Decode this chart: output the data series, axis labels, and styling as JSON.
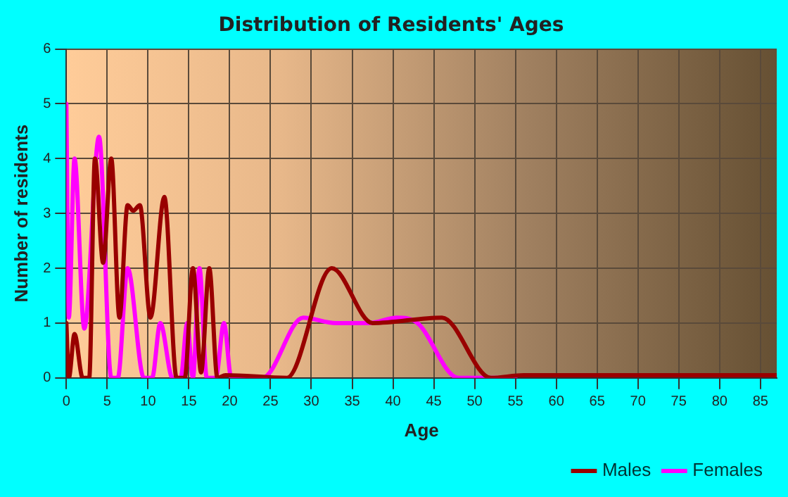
{
  "chart_data": {
    "type": "line",
    "title": "Distribution of Residents' Ages",
    "xlabel": "Age",
    "ylabel": "Number of residents",
    "xlim": [
      0,
      87
    ],
    "xticks": [
      0,
      5,
      10,
      15,
      20,
      25,
      30,
      35,
      40,
      45,
      50,
      55,
      60,
      65,
      70,
      75,
      80,
      85
    ],
    "ylim": [
      0,
      6
    ],
    "yticks": [
      0,
      1,
      2,
      3,
      4,
      5,
      6
    ],
    "grid": true,
    "legend": "bottom right",
    "marker": "none",
    "line_style": "solid",
    "series": [
      {
        "name": "Males",
        "color": "#990000",
        "x": [
          0,
          0.3,
          1,
          2,
          2.8,
          3.5,
          4.5,
          5.5,
          6.5,
          7.5,
          8.2,
          9,
          10.3,
          12,
          13.5,
          14.5,
          15.5,
          16.5,
          17.5,
          18.5,
          19.5,
          27,
          32.5,
          37.5,
          46,
          52,
          56,
          87
        ],
        "values": [
          1,
          0,
          0.8,
          0,
          0,
          4,
          2.1,
          4,
          1.1,
          3.15,
          3.05,
          3.15,
          1.1,
          3.3,
          0,
          0,
          2,
          0.1,
          2,
          0,
          0.05,
          0,
          2,
          1,
          1.1,
          0,
          0.05,
          0.05
        ]
      },
      {
        "name": "Females",
        "color": "#ff00ff",
        "x": [
          0,
          0.3,
          1,
          2.2,
          4,
          5.5,
          6.3,
          7.5,
          9.5,
          10.5,
          11.5,
          13,
          14,
          14.8,
          15.5,
          16.3,
          17.2,
          18.3,
          19.3,
          20.2,
          24,
          29,
          33,
          37,
          40.5,
          43,
          48,
          55
        ],
        "values": [
          5,
          1.1,
          4,
          0.9,
          4.4,
          0,
          0,
          2,
          0,
          0,
          1,
          0,
          0,
          1,
          0,
          2,
          0,
          0,
          1,
          0,
          0,
          1.1,
          1,
          1,
          1.1,
          1,
          0,
          0
        ]
      }
    ]
  }
}
